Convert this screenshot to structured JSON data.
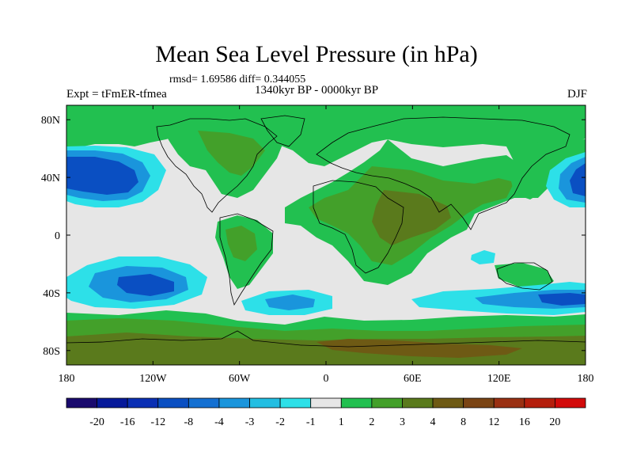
{
  "title": "Mean Sea Level Pressure (in hPa)",
  "stats": "rmsd= 1.69586 diff= 0.344055",
  "period": "1340kyr BP - 0000kyr BP",
  "experiment": "Expt = tFmER-tfmea",
  "season": "DJF",
  "map": {
    "lon_range": [
      -180,
      180
    ],
    "lat_range": [
      -90,
      90
    ],
    "lon_ticks": [
      {
        "value": -180,
        "label": "180"
      },
      {
        "value": -120,
        "label": "120W"
      },
      {
        "value": -60,
        "label": "60W"
      },
      {
        "value": 0,
        "label": "0"
      },
      {
        "value": 60,
        "label": "60E"
      },
      {
        "value": 120,
        "label": "120E"
      },
      {
        "value": 180,
        "label": "180"
      }
    ],
    "lat_ticks": [
      {
        "value": 80,
        "label": "80N"
      },
      {
        "value": 40,
        "label": "40N"
      },
      {
        "value": 0,
        "label": "0"
      },
      {
        "value": -40,
        "label": "40S"
      },
      {
        "value": -80,
        "label": "80S"
      }
    ]
  },
  "colorbar": {
    "colors": [
      "#1a0a6e",
      "#06199a",
      "#0a2fb4",
      "#0a4fc2",
      "#1470d2",
      "#1a95dc",
      "#22bee2",
      "#2de0e8",
      "#e6e6e6",
      "#22c050",
      "#43a02a",
      "#5a7a1c",
      "#6e5a14",
      "#7a4414",
      "#9a3012",
      "#b41e0c",
      "#d20a0a"
    ],
    "labels": [
      "-20",
      "-16",
      "-12",
      "-8",
      "-4",
      "-3",
      "-2",
      "-1",
      "1",
      "2",
      "3",
      "4",
      "8",
      "12",
      "16",
      "20"
    ]
  },
  "colors": {
    "neutral": "#e6e6e6",
    "pos_light": "#22c050",
    "pos_mid": "#43a02a",
    "pos_dark": "#5a7a1c",
    "pos_brown": "#6e5a14",
    "neg_1": "#2de0e8",
    "neg_2": "#22bee2",
    "neg_3": "#1a95dc",
    "neg_4": "#1470d2",
    "neg_5": "#0a4fc2",
    "neg_6": "#0a2fb4"
  }
}
